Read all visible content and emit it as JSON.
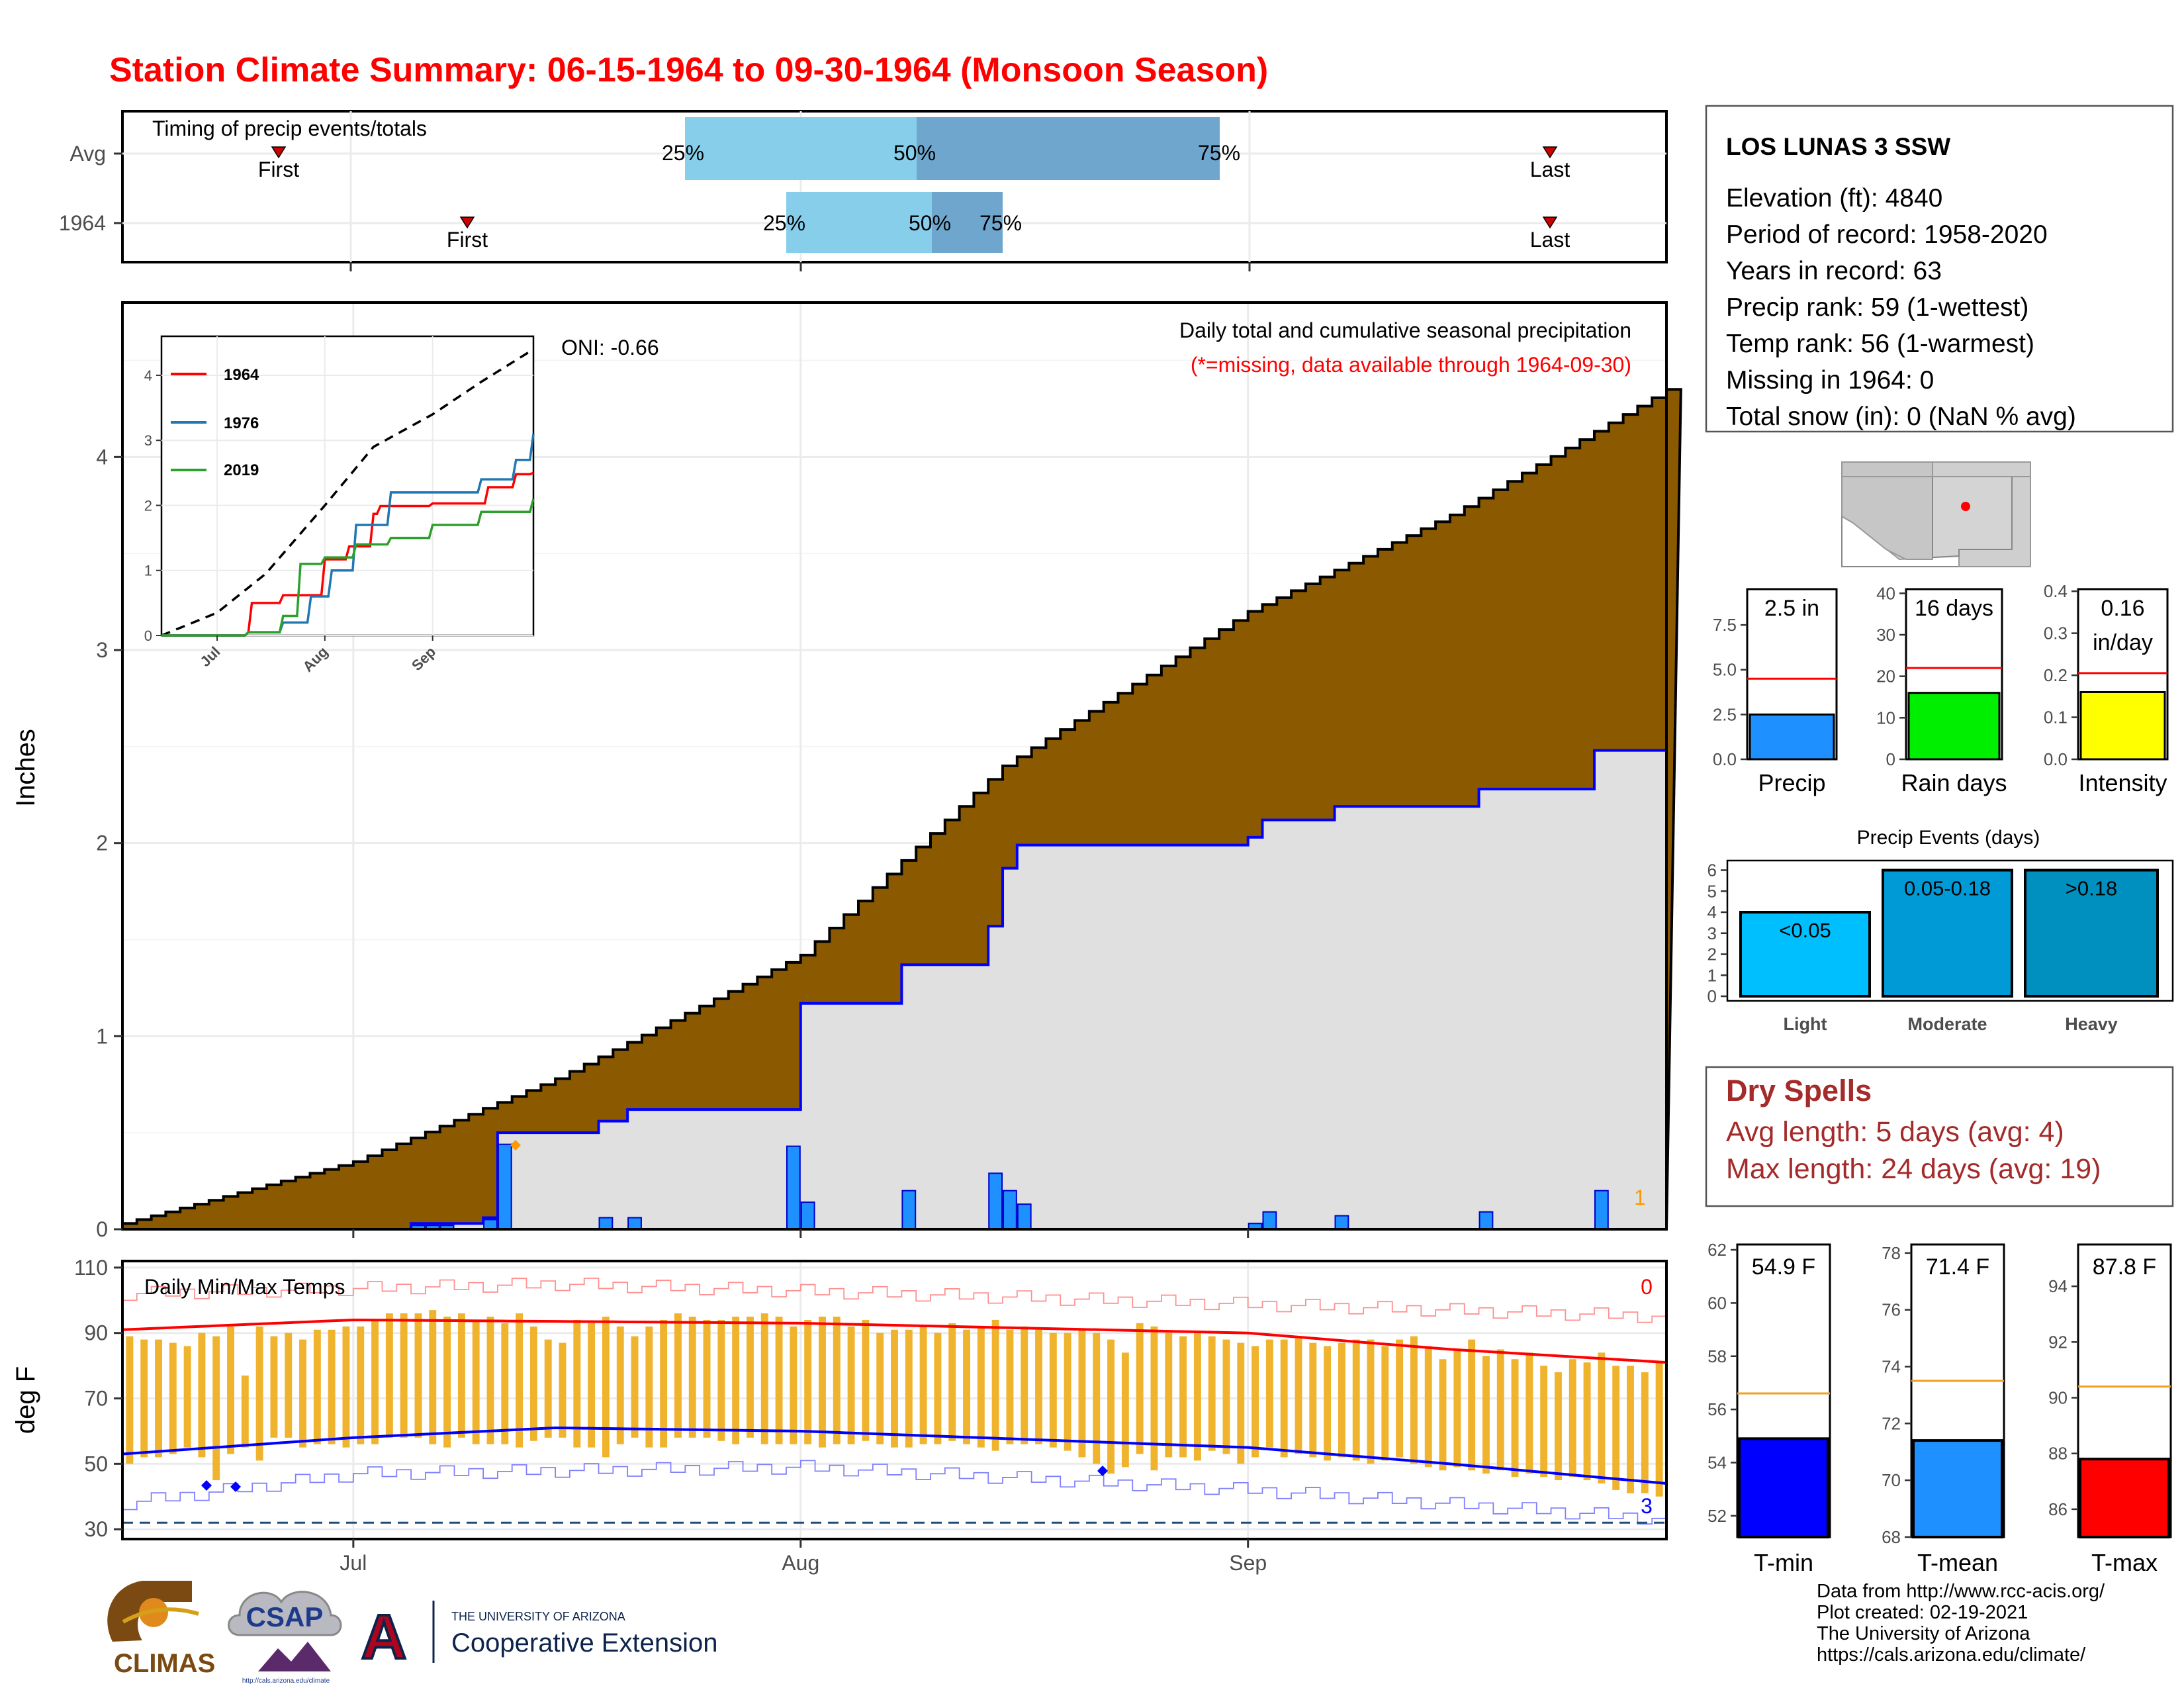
{
  "title": "Station Climate Summary: 06-15-1964 to 09-30-1964 (Monsoon Season)",
  "colors": {
    "title": "#ff0000",
    "cumulative_avg_fill": "#8b5a00",
    "cumulative_year_fill": "#e0e0e0",
    "cumulative_year_line": "#0000ff",
    "daily_bars": "#1e90ff",
    "temp_bars": "#f0b32d",
    "avg_max_line": "#ff0000",
    "avg_min_line": "#0000ff",
    "timing_light": "#87ceeb",
    "timing_dark": "#6ea6cd",
    "dry_spells_text": "#a52a2a"
  },
  "timing_panel": {
    "label": "Timing of precip events/totals",
    "rows": [
      {
        "name": "Avg",
        "first_label": "First",
        "last_label": "Last",
        "p25": "25%",
        "p50": "50%",
        "p75": "75%"
      },
      {
        "name": "1964",
        "first_label": "First",
        "last_label": "Last",
        "p25": "25%",
        "p50": "50%",
        "p75": "75%"
      }
    ]
  },
  "precip_panel": {
    "ylabel": "Inches",
    "oni": "ONI: -0.66",
    "caption": "Daily total and cumulative seasonal precipitation",
    "missing_note": "(*=missing, data available through 1964-09-30)",
    "corner_count": "1",
    "yticks": [
      "0",
      "1",
      "2",
      "3",
      "4"
    ],
    "inset": {
      "yticks": [
        "0",
        "1",
        "2",
        "3",
        "4"
      ],
      "xticks": [
        "Jul",
        "Aug",
        "Sep"
      ],
      "legend": [
        {
          "name": "1964",
          "color": "#ff0000"
        },
        {
          "name": "1976",
          "color": "#1f77b4"
        },
        {
          "name": "2019",
          "color": "#2ca02c"
        }
      ]
    }
  },
  "temp_panel": {
    "ylabel": "deg F",
    "label": "Daily Min/Max Temps",
    "count_top": "0",
    "count_bottom": "3",
    "yticks": [
      "30",
      "50",
      "70",
      "90",
      "110"
    ],
    "xticks": [
      "Jul",
      "Aug",
      "Sep"
    ]
  },
  "station": {
    "name": "LOS LUNAS 3 SSW",
    "lines": [
      "Elevation (ft): 4840",
      "Period of record: 1958-2020",
      "Years in record: 63",
      "Precip rank: 59 (1-wettest)",
      "Temp rank: 56 (1-warmest)",
      "Missing in 1964: 0",
      "Total snow (in): 0 (NaN % avg)"
    ]
  },
  "mini_bars": [
    {
      "label": "Precip",
      "value_text": "2.5 in",
      "value": 2.5,
      "avg": 4.5,
      "ymax": 9.5,
      "ticks": [
        "0.0",
        "2.5",
        "5.0",
        "7.5"
      ],
      "tickvals": [
        0,
        2.5,
        5,
        7.5
      ],
      "color": "#1e90ff"
    },
    {
      "label": "Rain days",
      "value_text": "16 days",
      "value": 16,
      "avg": 22,
      "ymax": 41,
      "ticks": [
        "0",
        "10",
        "20",
        "30",
        "40"
      ],
      "tickvals": [
        0,
        10,
        20,
        30,
        40
      ],
      "color": "#00ee00"
    },
    {
      "label": "Intensity",
      "value_text": "0.16\nin/day",
      "value": 0.16,
      "avg": 0.205,
      "ymax": 0.405,
      "ticks": [
        "0.0",
        "0.1",
        "0.2",
        "0.3",
        "0.4"
      ],
      "tickvals": [
        0,
        0.1,
        0.2,
        0.3,
        0.4
      ],
      "color": "#ffff00"
    }
  ],
  "precip_events": {
    "title": "Precip Events (days)",
    "yticks": [
      "0",
      "1",
      "2",
      "3",
      "4",
      "5",
      "6"
    ],
    "bars": [
      {
        "label": "Light",
        "range": "<0.05",
        "value": 4,
        "color": "#00bfff"
      },
      {
        "label": "Moderate",
        "range": "0.05-0.18",
        "value": 6,
        "color": "#009ad6"
      },
      {
        "label": "Heavy",
        "range": ">0.18",
        "value": 6,
        "color": "#0090c0"
      }
    ]
  },
  "dry_spells": {
    "title": "Dry Spells",
    "avg_length": "Avg length: 5 days (avg: 4)",
    "max_length": "Max length: 24 days (avg: 19)"
  },
  "temp_bars": [
    {
      "label": "T-min",
      "value_text": "54.9 F",
      "value": 54.9,
      "avg": 56.6,
      "ymin": 51.2,
      "ymax": 62.2,
      "ticks": [
        "52",
        "54",
        "56",
        "58",
        "60",
        "62"
      ],
      "tickvals": [
        52,
        54,
        56,
        58,
        60,
        62
      ],
      "color": "#0000ff"
    },
    {
      "label": "T-mean",
      "value_text": "71.4 F",
      "value": 71.4,
      "avg": 73.5,
      "ymin": 68,
      "ymax": 78.3,
      "ticks": [
        "68",
        "70",
        "72",
        "74",
        "76",
        "78"
      ],
      "tickvals": [
        68,
        70,
        72,
        74,
        76,
        78
      ],
      "color": "#1e90ff"
    },
    {
      "label": "T-max",
      "value_text": "87.8 F",
      "value": 87.8,
      "avg": 90.4,
      "ymin": 85,
      "ymax": 95.5,
      "ticks": [
        "86",
        "88",
        "90",
        "92",
        "94"
      ],
      "tickvals": [
        86,
        88,
        90,
        92,
        94
      ],
      "color": "#ff0000"
    }
  ],
  "credits": [
    "Data from http://www.rcc-acis.org/",
    "Plot created: 02-19-2021",
    "The University of Arizona",
    "https://cals.arizona.edu/climate/"
  ],
  "logos": {
    "climas": "CLIMAS",
    "csap": "CSAP",
    "csap_url": "http://cals.arizona.edu/climate",
    "ua_top": "THE UNIVERSITY OF ARIZONA",
    "ua_bottom": "Cooperative Extension",
    "ua_letter": "A"
  },
  "chart_data": [
    {
      "type": "area",
      "title": "Daily total and cumulative seasonal precipitation",
      "ylabel": "Inches",
      "ylim": [
        0,
        4.8
      ],
      "x_range": [
        "1964-06-15",
        "1964-09-30"
      ],
      "series": [
        {
          "name": "Avg",
          "x": [
            "1964-06-15",
            "1964-07-01",
            "1964-07-15",
            "1964-08-01",
            "1964-08-15",
            "1964-09-01",
            "1964-09-15",
            "1964-09-30"
          ],
          "values": [
            0.03,
            0.35,
            0.78,
            1.42,
            2.4,
            3.2,
            3.7,
            4.35
          ]
        },
        {
          "name": "1964",
          "x": [
            "1964-06-15",
            "1964-07-05",
            "1964-07-10",
            "1964-07-11",
            "1964-07-18",
            "1964-07-20",
            "1964-07-31",
            "1964-08-01",
            "1964-08-08",
            "1964-08-14",
            "1964-08-15",
            "1964-08-16",
            "1964-08-17",
            "1964-09-01",
            "1964-09-02",
            "1964-09-07",
            "1964-09-11",
            "1964-09-17",
            "1964-09-25",
            "1964-09-30"
          ],
          "values": [
            0.0,
            0.03,
            0.06,
            0.5,
            0.56,
            0.62,
            0.62,
            1.17,
            1.37,
            1.57,
            1.87,
            1.99,
            1.99,
            2.03,
            2.12,
            2.19,
            2.19,
            2.28,
            2.48,
            2.48
          ]
        }
      ],
      "bars": {
        "name": "Daily",
        "x": [
          "1964-07-05",
          "1964-07-06",
          "1964-07-07",
          "1964-07-10",
          "1964-07-11",
          "1964-07-18",
          "1964-07-20",
          "1964-07-31",
          "1964-08-01",
          "1964-08-08",
          "1964-08-14",
          "1964-08-15",
          "1964-08-16",
          "1964-09-01",
          "1964-09-02",
          "1964-09-07",
          "1964-09-17",
          "1964-09-25"
        ],
        "values": [
          0.02,
          0.02,
          0.02,
          0.05,
          0.44,
          0.06,
          0.06,
          0.43,
          0.14,
          0.2,
          0.29,
          0.2,
          0.13,
          0.03,
          0.09,
          0.07,
          0.09,
          0.2
        ]
      }
    },
    {
      "type": "line",
      "title": "",
      "xlabel": "",
      "ylabel": "",
      "ylim": [
        0,
        4.6
      ],
      "x_range": [
        "1964-06-15",
        "1964-09-30"
      ],
      "series": [
        {
          "name": "Avg",
          "x": [
            "1964-06-15",
            "1964-07-01",
            "1964-07-15",
            "1964-08-01",
            "1964-08-15",
            "1964-09-01",
            "1964-09-15",
            "1964-09-30"
          ],
          "values": [
            0.0,
            0.35,
            0.95,
            2.0,
            2.9,
            3.4,
            3.9,
            4.4
          ]
        },
        {
          "name": "1964",
          "x": [
            "1964-06-15",
            "1964-07-10",
            "1964-07-11",
            "1964-07-20",
            "1964-08-01",
            "1964-08-08",
            "1964-08-15",
            "1964-08-17",
            "1964-09-01",
            "1964-09-17",
            "1964-09-25",
            "1964-09-30"
          ],
          "values": [
            0.0,
            0.05,
            0.5,
            0.62,
            1.17,
            1.37,
            1.87,
            1.99,
            2.03,
            2.28,
            2.48,
            2.5
          ]
        },
        {
          "name": "1976",
          "x": [
            "1964-06-15",
            "1964-07-10",
            "1964-07-20",
            "1964-07-28",
            "1964-08-03",
            "1964-08-10",
            "1964-08-20",
            "1964-09-01",
            "1964-09-15",
            "1964-09-25",
            "1964-09-30"
          ],
          "values": [
            0.0,
            0.05,
            0.2,
            0.6,
            1.0,
            1.7,
            2.2,
            2.2,
            2.4,
            2.7,
            3.1
          ]
        },
        {
          "name": "2019",
          "x": [
            "1964-06-15",
            "1964-07-10",
            "1964-07-20",
            "1964-07-25",
            "1964-08-01",
            "1964-08-10",
            "1964-08-20",
            "1964-09-01",
            "1964-09-15",
            "1964-09-30"
          ],
          "values": [
            0.0,
            0.05,
            0.3,
            1.1,
            1.2,
            1.4,
            1.5,
            1.7,
            1.9,
            2.1
          ]
        }
      ]
    },
    {
      "type": "bar",
      "title": "Daily Min/Max Temps",
      "ylabel": "deg F",
      "ylim": [
        27,
        112
      ],
      "x_range": [
        "1964-06-15",
        "1964-09-30"
      ],
      "series": [
        {
          "name": "Daily max",
          "note": "approximate",
          "values": [
            89,
            88,
            88,
            87,
            86,
            90,
            89,
            92,
            77,
            92,
            89,
            90,
            88,
            91,
            91,
            92,
            92,
            94,
            96,
            96,
            96,
            97,
            95,
            96,
            94,
            95,
            93,
            96,
            92,
            88,
            87,
            94,
            93,
            95,
            92,
            89,
            92,
            94,
            96,
            95,
            94,
            94,
            95,
            95,
            96,
            95,
            92,
            94,
            95,
            95,
            92,
            94,
            90,
            91,
            91,
            92,
            90,
            93,
            91,
            92,
            94,
            91,
            92,
            91,
            90,
            90,
            91,
            90,
            88,
            84,
            93,
            92,
            90,
            89,
            90,
            89,
            88,
            87,
            86,
            88,
            88,
            89,
            87,
            86,
            87,
            88,
            88,
            86,
            88,
            89,
            86,
            82,
            85,
            88,
            83,
            85,
            82,
            84,
            80,
            78,
            82,
            81,
            84,
            80,
            80,
            78,
            81,
            82
          ]
        },
        {
          "name": "Daily min",
          "note": "approximate",
          "values": [
            50,
            52,
            52,
            53,
            55,
            52,
            45,
            53,
            55,
            51,
            58,
            58,
            55,
            56,
            56,
            55,
            56,
            56,
            58,
            58,
            58,
            56,
            55,
            58,
            56,
            56,
            56,
            55,
            57,
            58,
            58,
            55,
            55,
            52,
            56,
            58,
            55,
            55,
            58,
            58,
            58,
            57,
            56,
            58,
            56,
            56,
            56,
            56,
            55,
            56,
            56,
            57,
            56,
            55,
            55,
            56,
            56,
            57,
            56,
            55,
            54,
            56,
            56,
            56,
            55,
            54,
            52,
            50,
            47,
            49,
            53,
            48,
            52,
            52,
            51,
            54,
            53,
            50,
            52,
            55,
            52,
            53,
            52,
            51,
            52,
            51,
            50,
            51,
            52,
            50,
            49,
            48,
            49,
            48,
            47,
            48,
            46,
            47,
            46,
            45,
            46,
            45,
            44,
            42,
            41,
            41,
            40,
            40
          ]
        }
      ],
      "lines": [
        {
          "name": "Avg max",
          "x": [
            "1964-06-15",
            "1964-07-01",
            "1964-08-01",
            "1964-09-01",
            "1964-09-15",
            "1964-09-30"
          ],
          "values": [
            91,
            94,
            93,
            90,
            85,
            81
          ]
        },
        {
          "name": "Avg min",
          "x": [
            "1964-06-15",
            "1964-07-01",
            "1964-07-15",
            "1964-08-01",
            "1964-09-01",
            "1964-09-15",
            "1964-09-30"
          ],
          "values": [
            53,
            58,
            61,
            60,
            55,
            50,
            44
          ]
        },
        {
          "name": "Record max",
          "x": [
            "1964-06-15",
            "1964-07-15",
            "1964-08-15",
            "1964-09-30"
          ],
          "values": [
            102,
            105,
            101,
            95
          ]
        },
        {
          "name": "Record min",
          "x": [
            "1964-06-15",
            "1964-07-01",
            "1964-08-01",
            "1964-09-01",
            "1964-09-30"
          ],
          "values": [
            38,
            47,
            49,
            42,
            33
          ]
        }
      ],
      "reference_line": 32
    }
  ]
}
